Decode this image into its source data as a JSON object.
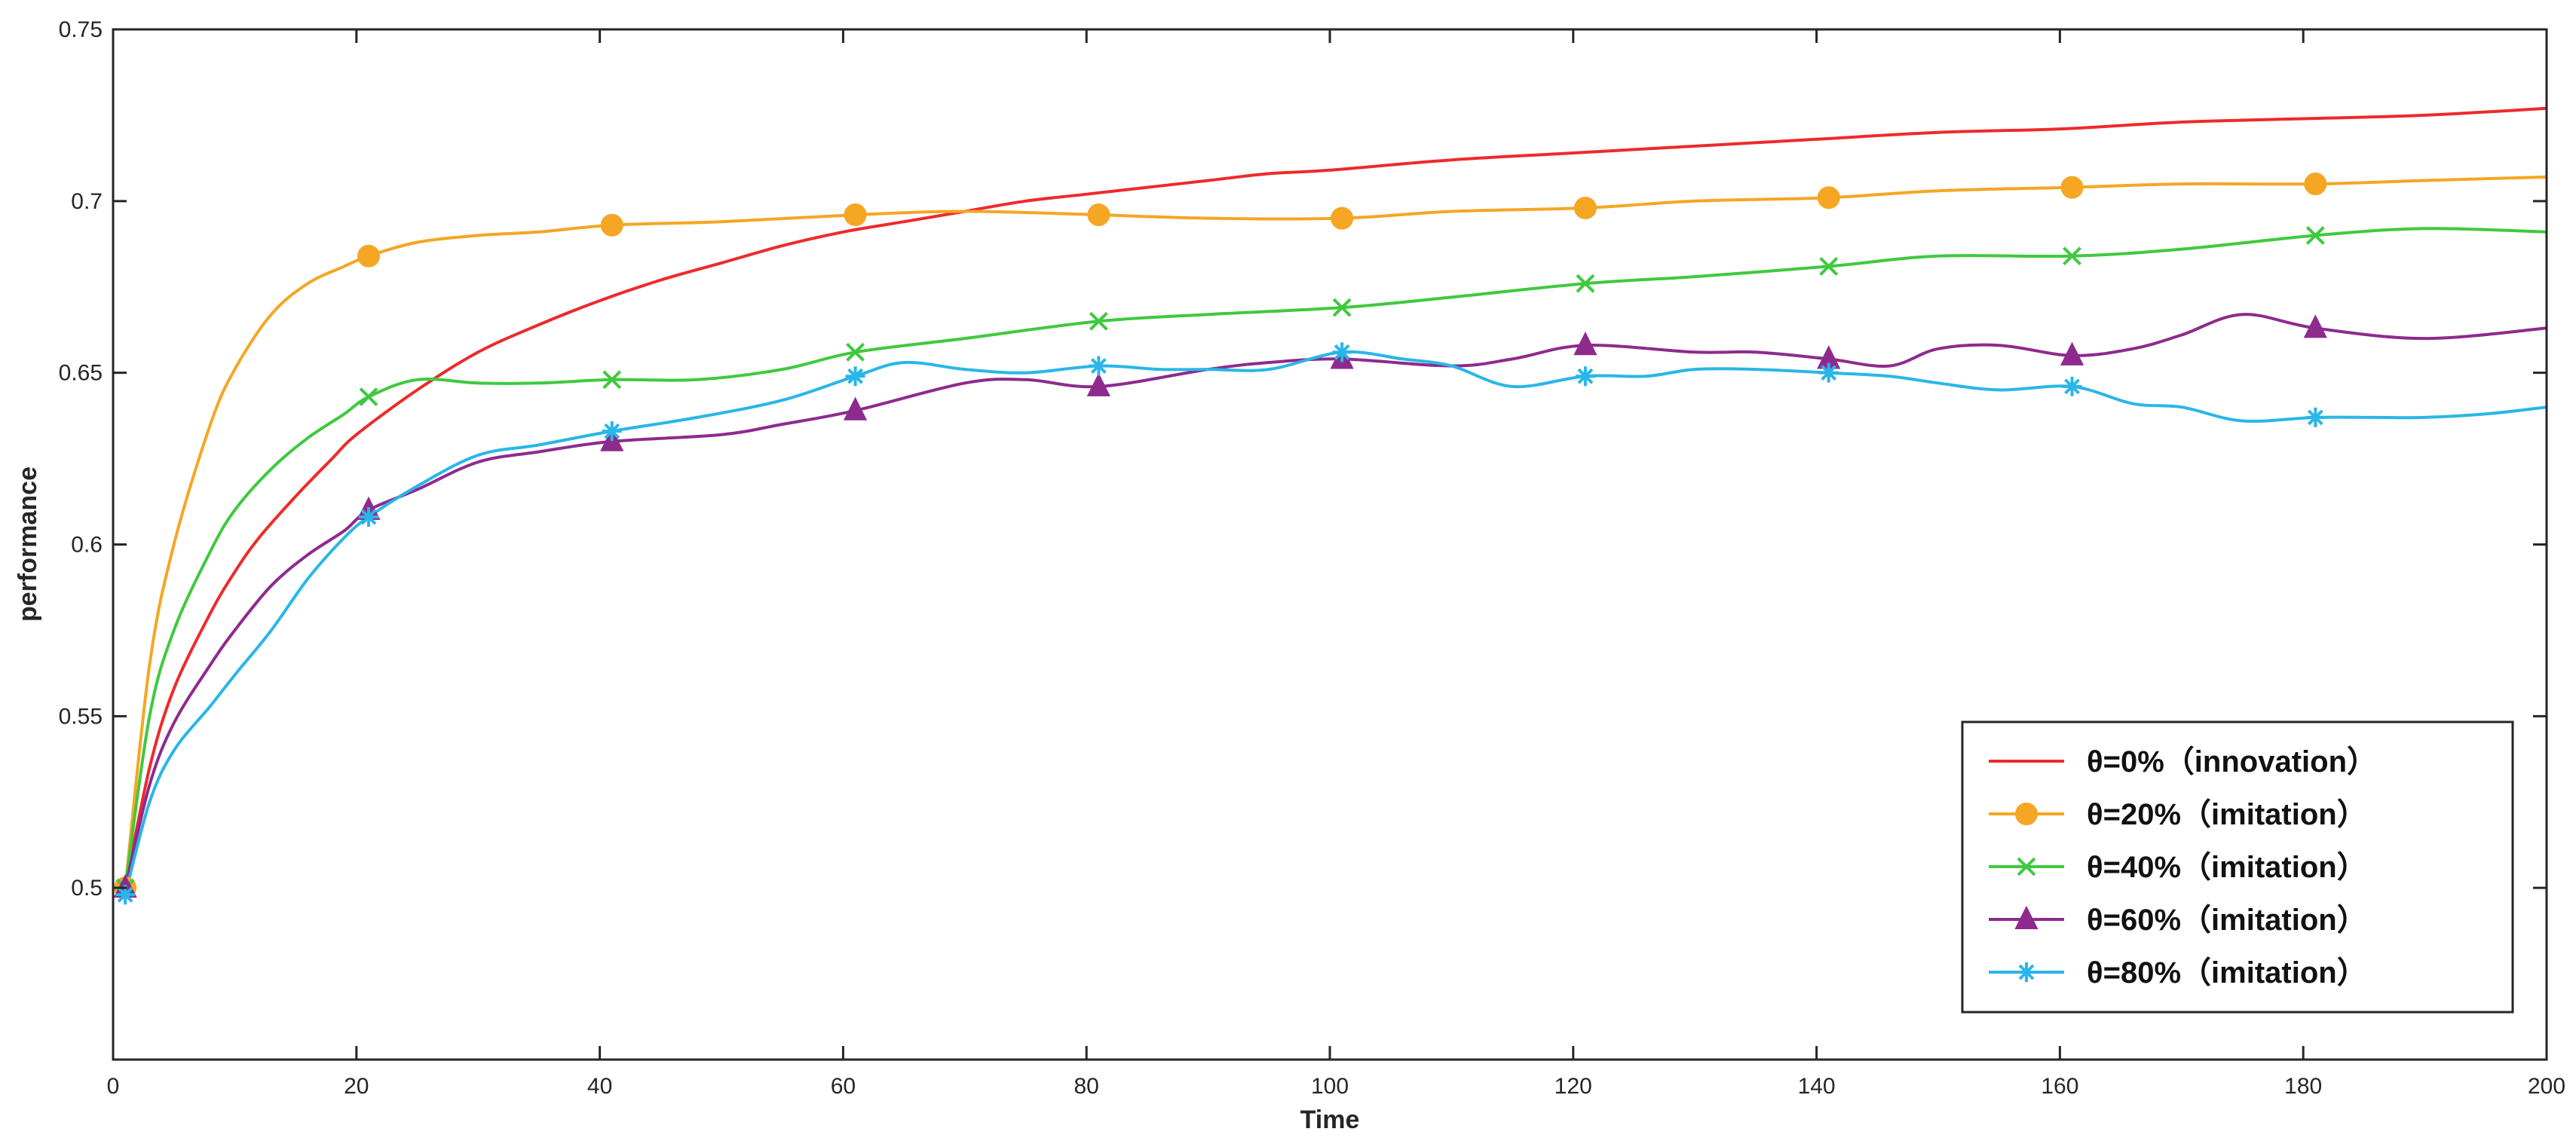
{
  "chart_data": {
    "type": "line",
    "xlabel": "Time",
    "ylabel": "performance",
    "xlim": [
      0,
      200
    ],
    "ylim": [
      0.45,
      0.75
    ],
    "xticks": [
      0,
      20,
      40,
      60,
      80,
      100,
      120,
      140,
      160,
      180,
      200
    ],
    "yticks": [
      0.5,
      0.55,
      0.6,
      0.65,
      0.7,
      0.75
    ],
    "xtick_labels": [
      "0",
      "20",
      "40",
      "60",
      "80",
      "100",
      "120",
      "140",
      "160",
      "180",
      "200"
    ],
    "ytick_labels": [
      "0.5",
      "0.55",
      "0.6",
      "0.65",
      "0.7",
      "0.75"
    ],
    "grid": false,
    "legend_position": "bottom-right",
    "series": [
      {
        "name": "θ=0%（innovation）",
        "color": "#ee2a2a",
        "marker": "none",
        "x": [
          1,
          3,
          5,
          8,
          10,
          12,
          15,
          18,
          20,
          25,
          30,
          35,
          40,
          45,
          50,
          55,
          60,
          65,
          70,
          75,
          80,
          85,
          90,
          95,
          100,
          110,
          120,
          130,
          140,
          150,
          160,
          170,
          180,
          190,
          200
        ],
        "y": [
          0.5,
          0.535,
          0.558,
          0.58,
          0.592,
          0.602,
          0.614,
          0.625,
          0.632,
          0.645,
          0.656,
          0.664,
          0.671,
          0.677,
          0.682,
          0.687,
          0.691,
          0.694,
          0.697,
          0.7,
          0.702,
          0.704,
          0.706,
          0.708,
          0.709,
          0.712,
          0.714,
          0.716,
          0.718,
          0.72,
          0.721,
          0.723,
          0.724,
          0.725,
          0.727
        ]
      },
      {
        "name": "θ=20%（imitation）",
        "color": "#f5a623",
        "marker": "circle",
        "x": [
          1,
          3,
          5,
          8,
          10,
          13,
          16,
          19,
          21,
          25,
          30,
          35,
          41,
          50,
          61,
          70,
          81,
          90,
          101,
          110,
          121,
          130,
          141,
          150,
          161,
          170,
          181,
          190,
          200
        ],
        "y": [
          0.5,
          0.565,
          0.6,
          0.635,
          0.651,
          0.667,
          0.676,
          0.681,
          0.684,
          0.688,
          0.69,
          0.691,
          0.693,
          0.694,
          0.696,
          0.697,
          0.696,
          0.695,
          0.695,
          0.697,
          0.698,
          0.7,
          0.701,
          0.703,
          0.704,
          0.705,
          0.705,
          0.706,
          0.707
        ]
      },
      {
        "name": "θ=40%（imitation）",
        "color": "#3fc93f",
        "marker": "x",
        "x": [
          1,
          3,
          5,
          8,
          10,
          13,
          16,
          19,
          21,
          25,
          30,
          35,
          41,
          48,
          55,
          61,
          70,
          81,
          90,
          101,
          110,
          121,
          130,
          141,
          150,
          161,
          170,
          181,
          190,
          200
        ],
        "y": [
          0.5,
          0.55,
          0.575,
          0.598,
          0.61,
          0.622,
          0.631,
          0.638,
          0.643,
          0.648,
          0.647,
          0.647,
          0.648,
          0.648,
          0.651,
          0.656,
          0.66,
          0.665,
          0.667,
          0.669,
          0.672,
          0.676,
          0.678,
          0.681,
          0.684,
          0.684,
          0.686,
          0.69,
          0.692,
          0.691
        ]
      },
      {
        "name": "θ=60%（imitation）",
        "color": "#8e2a8e",
        "marker": "triangle",
        "x": [
          1,
          3,
          5,
          8,
          10,
          13,
          16,
          19,
          21,
          25,
          30,
          35,
          41,
          50,
          55,
          61,
          70,
          75,
          81,
          90,
          95,
          101,
          110,
          115,
          121,
          130,
          135,
          141,
          146,
          150,
          155,
          161,
          166,
          170,
          175,
          181,
          190,
          200
        ],
        "y": [
          0.5,
          0.53,
          0.548,
          0.565,
          0.575,
          0.588,
          0.597,
          0.604,
          0.61,
          0.616,
          0.624,
          0.627,
          0.63,
          0.632,
          0.635,
          0.639,
          0.647,
          0.648,
          0.646,
          0.651,
          0.653,
          0.654,
          0.652,
          0.654,
          0.658,
          0.656,
          0.656,
          0.654,
          0.652,
          0.657,
          0.658,
          0.655,
          0.657,
          0.661,
          0.667,
          0.663,
          0.66,
          0.663
        ]
      },
      {
        "name": "θ=80%（imitation）",
        "color": "#29b6e8",
        "marker": "asterisk",
        "x": [
          1,
          3,
          5,
          8,
          10,
          13,
          16,
          19,
          21,
          25,
          30,
          35,
          41,
          48,
          55,
          61,
          65,
          70,
          75,
          81,
          86,
          90,
          95,
          101,
          106,
          110,
          115,
          121,
          126,
          130,
          135,
          141,
          146,
          150,
          155,
          161,
          166,
          170,
          175,
          181,
          186,
          190,
          195,
          200
        ],
        "y": [
          0.498,
          0.525,
          0.54,
          0.553,
          0.562,
          0.575,
          0.59,
          0.602,
          0.608,
          0.617,
          0.626,
          0.629,
          0.633,
          0.637,
          0.642,
          0.649,
          0.653,
          0.651,
          0.65,
          0.652,
          0.651,
          0.651,
          0.651,
          0.656,
          0.654,
          0.652,
          0.646,
          0.649,
          0.649,
          0.651,
          0.651,
          0.65,
          0.649,
          0.647,
          0.645,
          0.646,
          0.641,
          0.64,
          0.636,
          0.637,
          0.637,
          0.637,
          0.638,
          0.64
        ]
      }
    ]
  }
}
